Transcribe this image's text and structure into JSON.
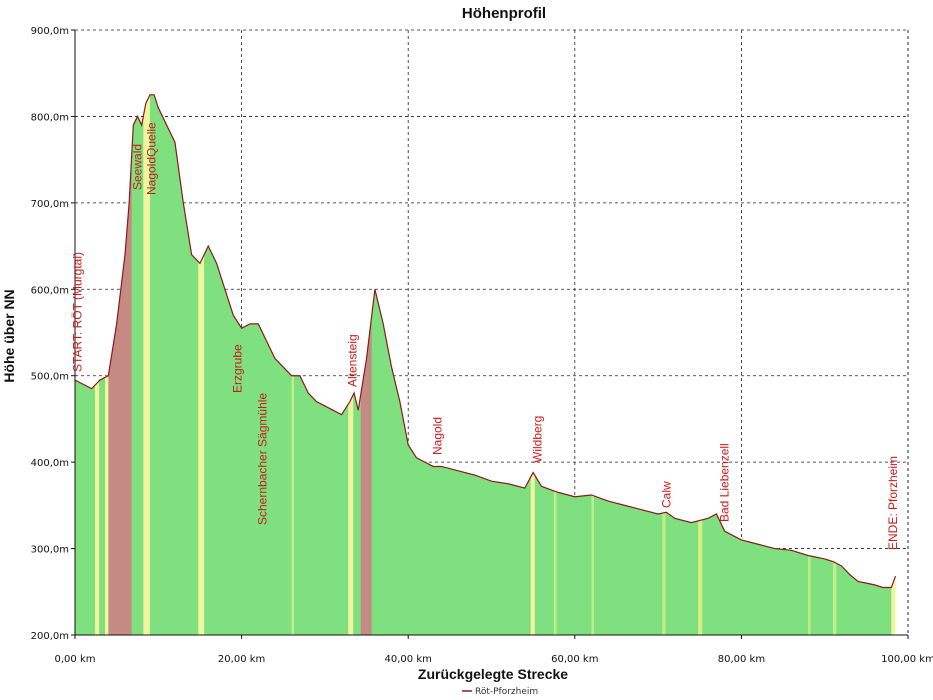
{
  "chart_data": {
    "type": "area",
    "title": "Höhenprofil",
    "xlabel": "Zurückgelegte Strecke",
    "ylabel": "Höhe über NN",
    "xlim": [
      0,
      100
    ],
    "ylim": [
      200,
      900
    ],
    "x_ticks": [
      0,
      20,
      40,
      60,
      80,
      100
    ],
    "x_tick_labels": [
      "0,00 km",
      "20,00 km",
      "40,00 km",
      "60,00 km",
      "80,00 km",
      "100,00 km"
    ],
    "y_ticks": [
      200,
      300,
      400,
      500,
      600,
      700,
      800,
      900
    ],
    "y_tick_labels": [
      "200,0m",
      "300,0m",
      "400,0m",
      "500,0m",
      "600,0m",
      "700,0m",
      "800,0m",
      "900,0m"
    ],
    "grid": true,
    "legend_position": "bottom-center",
    "series": [
      {
        "name": "Röt-Pforzheim",
        "color": "#8b1a1a",
        "x": [
          0,
          1,
          2,
          3,
          4,
          5,
          6,
          6.5,
          7,
          7.5,
          8,
          8.5,
          9,
          9.5,
          10,
          11,
          12,
          13,
          14,
          15,
          16,
          17,
          18,
          19,
          20,
          21,
          22,
          23,
          24,
          25,
          26,
          27,
          28,
          29,
          30,
          31,
          32,
          33,
          33.5,
          34,
          35,
          36,
          37,
          38,
          39,
          40,
          41,
          42,
          43,
          44,
          46,
          48,
          50,
          52,
          54,
          55,
          56,
          58,
          60,
          62,
          64,
          66,
          68,
          70,
          71,
          72,
          74,
          76,
          77,
          78,
          80,
          82,
          84,
          86,
          88,
          90,
          91,
          92,
          93,
          94,
          95,
          96,
          97,
          98,
          98.5
        ],
        "y": [
          495,
          490,
          485,
          495,
          500,
          560,
          640,
          700,
          790,
          800,
          790,
          815,
          825,
          825,
          810,
          790,
          770,
          700,
          640,
          630,
          650,
          630,
          600,
          570,
          555,
          560,
          560,
          540,
          520,
          510,
          500,
          500,
          480,
          470,
          465,
          460,
          455,
          470,
          480,
          460,
          520,
          600,
          560,
          510,
          470,
          420,
          405,
          400,
          395,
          395,
          390,
          385,
          378,
          375,
          370,
          388,
          372,
          365,
          360,
          362,
          355,
          350,
          345,
          340,
          342,
          335,
          330,
          335,
          340,
          320,
          310,
          305,
          300,
          298,
          292,
          288,
          285,
          280,
          270,
          262,
          260,
          258,
          255,
          255,
          268
        ]
      }
    ],
    "annotations": [
      {
        "text": "START: RÖT (Murgtal)",
        "x": 0.3
      },
      {
        "text": "Seewald",
        "x": 7.5
      },
      {
        "text": "NagoldQuelle",
        "x": 9.2
      },
      {
        "text": "Erzgrube",
        "x": 19.5
      },
      {
        "text": "Schernbacher Sägmühle",
        "x": 22.5
      },
      {
        "text": "Altensteig",
        "x": 33.3
      },
      {
        "text": "Nagold",
        "x": 43.5
      },
      {
        "text": "Wildberg",
        "x": 55.5
      },
      {
        "text": "Calw",
        "x": 71
      },
      {
        "text": "Bad Liebenzell",
        "x": 78
      },
      {
        "text": "ENDE: Pforzheim",
        "x": 98.2
      }
    ],
    "shade_bands": [
      {
        "x0": 4,
        "x1": 6.8,
        "color": "#c98585"
      },
      {
        "x0": 34.3,
        "x1": 35.6,
        "color": "#c98585"
      },
      {
        "x0": 2.4,
        "x1": 2.9,
        "color": "#f7f7a0"
      },
      {
        "x0": 3.6,
        "x1": 4.0,
        "color": "#f7f7a0"
      },
      {
        "x0": 8.2,
        "x1": 9.0,
        "color": "#f7f7a0"
      },
      {
        "x0": 14.8,
        "x1": 15.5,
        "color": "#f7f7a0"
      },
      {
        "x0": 32.8,
        "x1": 33.4,
        "color": "#f7f7a0"
      },
      {
        "x0": 54.7,
        "x1": 55.2,
        "color": "#f7f7a0"
      },
      {
        "x0": 98.0,
        "x1": 98.5,
        "color": "#f7f7a0"
      },
      {
        "x0": 26.0,
        "x1": 26.3,
        "color": "#c4ee8a"
      },
      {
        "x0": 57.5,
        "x1": 57.8,
        "color": "#c4ee8a"
      },
      {
        "x0": 62.0,
        "x1": 62.3,
        "color": "#c4ee8a"
      },
      {
        "x0": 70.5,
        "x1": 70.9,
        "color": "#c4ee8a"
      },
      {
        "x0": 74.8,
        "x1": 75.3,
        "color": "#d8f08a"
      },
      {
        "x0": 88.0,
        "x1": 88.3,
        "color": "#c4ee8a"
      },
      {
        "x0": 91.0,
        "x1": 91.4,
        "color": "#c4ee8a"
      }
    ],
    "fill_color": "#7ee07e",
    "line_color": "#8b1a1a"
  }
}
